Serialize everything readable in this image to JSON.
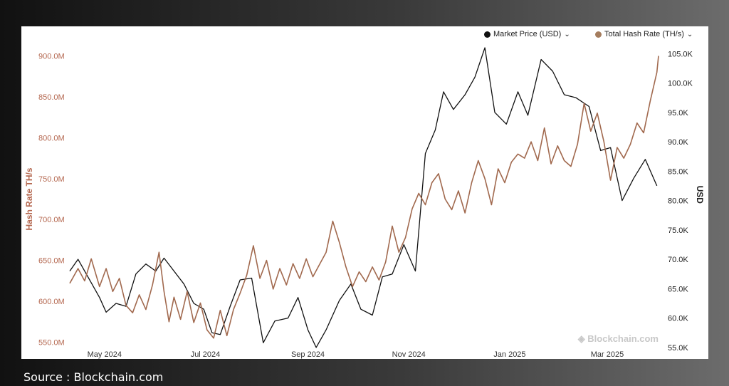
{
  "colors": {
    "price": "#111111",
    "hashrate": "#a1694e",
    "left_axis_text": "#b4674f",
    "watermark": "#c8c8c8"
  },
  "legend": {
    "price_label": "Market Price (USD)",
    "hashrate_label": "Total Hash Rate (TH/s)"
  },
  "watermark": "Blockchain.com",
  "source": "Source : Blockchain.com",
  "chart_data": {
    "type": "line",
    "title": "",
    "x_ticks": [
      "May 2024",
      "Jul 2024",
      "Sep 2024",
      "Nov 2024",
      "Jan 2025",
      "Mar 2025"
    ],
    "x_tick_dates": [
      "2024-05-01",
      "2024-07-01",
      "2024-09-01",
      "2024-11-01",
      "2025-01-01",
      "2025-03-01"
    ],
    "x_range": [
      "2024-04-10",
      "2025-04-01"
    ],
    "y_left": {
      "label": "Hash Rate TH/s",
      "ticks": [
        "550.0M",
        "600.0M",
        "650.0M",
        "700.0M",
        "750.0M",
        "800.0M",
        "850.0M",
        "900.0M"
      ],
      "min": 540000000,
      "max": 910000000
    },
    "y_right": {
      "label": "USD",
      "ticks": [
        "55.0K",
        "60.0K",
        "65.0K",
        "70.0K",
        "75.0K",
        "80.0K",
        "85.0K",
        "90.0K",
        "95.0K",
        "100.0K",
        "105.0K"
      ],
      "min": 54500,
      "max": 106000
    },
    "legend_position": "top-right",
    "grid": false,
    "series": [
      {
        "name": "Market Price (USD)",
        "axis": "right",
        "points": [
          [
            "2024-04-10",
            68000
          ],
          [
            "2024-04-15",
            70000
          ],
          [
            "2024-04-22",
            66500
          ],
          [
            "2024-04-28",
            63500
          ],
          [
            "2024-05-02",
            61000
          ],
          [
            "2024-05-08",
            62500
          ],
          [
            "2024-05-14",
            62000
          ],
          [
            "2024-05-20",
            67500
          ],
          [
            "2024-05-26",
            69200
          ],
          [
            "2024-06-01",
            68000
          ],
          [
            "2024-06-06",
            70200
          ],
          [
            "2024-06-12",
            68000
          ],
          [
            "2024-06-18",
            65800
          ],
          [
            "2024-06-24",
            62500
          ],
          [
            "2024-06-30",
            61500
          ],
          [
            "2024-07-05",
            57500
          ],
          [
            "2024-07-10",
            57200
          ],
          [
            "2024-07-16",
            62000
          ],
          [
            "2024-07-22",
            66500
          ],
          [
            "2024-07-29",
            66800
          ],
          [
            "2024-08-05",
            55800
          ],
          [
            "2024-08-12",
            59500
          ],
          [
            "2024-08-20",
            60000
          ],
          [
            "2024-08-26",
            63500
          ],
          [
            "2024-09-01",
            58000
          ],
          [
            "2024-09-06",
            55000
          ],
          [
            "2024-09-12",
            58000
          ],
          [
            "2024-09-20",
            63000
          ],
          [
            "2024-09-27",
            65800
          ],
          [
            "2024-10-03",
            61500
          ],
          [
            "2024-10-10",
            60500
          ],
          [
            "2024-10-16",
            67000
          ],
          [
            "2024-10-22",
            67500
          ],
          [
            "2024-10-29",
            72500
          ],
          [
            "2024-11-05",
            68000
          ],
          [
            "2024-11-11",
            88000
          ],
          [
            "2024-11-17",
            92000
          ],
          [
            "2024-11-22",
            98500
          ],
          [
            "2024-11-28",
            95500
          ],
          [
            "2024-12-05",
            98000
          ],
          [
            "2024-12-11",
            101000
          ],
          [
            "2024-12-17",
            106000
          ],
          [
            "2024-12-23",
            95000
          ],
          [
            "2024-12-30",
            93000
          ],
          [
            "2025-01-06",
            98500
          ],
          [
            "2025-01-12",
            94500
          ],
          [
            "2025-01-20",
            104000
          ],
          [
            "2025-01-27",
            102000
          ],
          [
            "2025-02-03",
            98000
          ],
          [
            "2025-02-10",
            97500
          ],
          [
            "2025-02-18",
            96000
          ],
          [
            "2025-02-25",
            88500
          ],
          [
            "2025-03-03",
            89000
          ],
          [
            "2025-03-10",
            80000
          ],
          [
            "2025-03-17",
            83800
          ],
          [
            "2025-03-24",
            87000
          ],
          [
            "2025-03-31",
            82500
          ]
        ]
      },
      {
        "name": "Total Hash Rate (TH/s)",
        "axis": "left",
        "points": [
          [
            "2024-04-10",
            622000000
          ],
          [
            "2024-04-15",
            640000000
          ],
          [
            "2024-04-19",
            625000000
          ],
          [
            "2024-04-23",
            652000000
          ],
          [
            "2024-04-28",
            618000000
          ],
          [
            "2024-05-02",
            640000000
          ],
          [
            "2024-05-06",
            612000000
          ],
          [
            "2024-05-10",
            628000000
          ],
          [
            "2024-05-14",
            595000000
          ],
          [
            "2024-05-18",
            586000000
          ],
          [
            "2024-05-22",
            608000000
          ],
          [
            "2024-05-26",
            590000000
          ],
          [
            "2024-05-30",
            620000000
          ],
          [
            "2024-06-03",
            660000000
          ],
          [
            "2024-06-06",
            612000000
          ],
          [
            "2024-06-09",
            575000000
          ],
          [
            "2024-06-12",
            605000000
          ],
          [
            "2024-06-16",
            578000000
          ],
          [
            "2024-06-20",
            612000000
          ],
          [
            "2024-06-24",
            574000000
          ],
          [
            "2024-06-28",
            598000000
          ],
          [
            "2024-07-02",
            565000000
          ],
          [
            "2024-07-06",
            555000000
          ],
          [
            "2024-07-10",
            589000000
          ],
          [
            "2024-07-14",
            558000000
          ],
          [
            "2024-07-18",
            590000000
          ],
          [
            "2024-07-22",
            610000000
          ],
          [
            "2024-07-26",
            632000000
          ],
          [
            "2024-07-30",
            668000000
          ],
          [
            "2024-08-03",
            628000000
          ],
          [
            "2024-08-07",
            650000000
          ],
          [
            "2024-08-11",
            615000000
          ],
          [
            "2024-08-15",
            640000000
          ],
          [
            "2024-08-19",
            620000000
          ],
          [
            "2024-08-23",
            646000000
          ],
          [
            "2024-08-27",
            628000000
          ],
          [
            "2024-08-31",
            652000000
          ],
          [
            "2024-09-04",
            630000000
          ],
          [
            "2024-09-08",
            645000000
          ],
          [
            "2024-09-12",
            660000000
          ],
          [
            "2024-09-16",
            698000000
          ],
          [
            "2024-09-20",
            672000000
          ],
          [
            "2024-09-24",
            642000000
          ],
          [
            "2024-09-28",
            618000000
          ],
          [
            "2024-10-02",
            636000000
          ],
          [
            "2024-10-06",
            624000000
          ],
          [
            "2024-10-10",
            642000000
          ],
          [
            "2024-10-14",
            626000000
          ],
          [
            "2024-10-18",
            648000000
          ],
          [
            "2024-10-22",
            692000000
          ],
          [
            "2024-10-26",
            660000000
          ],
          [
            "2024-10-30",
            678000000
          ],
          [
            "2024-11-03",
            713000000
          ],
          [
            "2024-11-07",
            732000000
          ],
          [
            "2024-11-11",
            718000000
          ],
          [
            "2024-11-15",
            745000000
          ],
          [
            "2024-11-19",
            756000000
          ],
          [
            "2024-11-23",
            725000000
          ],
          [
            "2024-11-27",
            712000000
          ],
          [
            "2024-12-01",
            735000000
          ],
          [
            "2024-12-05",
            708000000
          ],
          [
            "2024-12-09",
            745000000
          ],
          [
            "2024-12-13",
            772000000
          ],
          [
            "2024-12-17",
            750000000
          ],
          [
            "2024-12-21",
            718000000
          ],
          [
            "2024-12-25",
            762000000
          ],
          [
            "2024-12-29",
            745000000
          ],
          [
            "2025-01-02",
            770000000
          ],
          [
            "2025-01-06",
            780000000
          ],
          [
            "2025-01-10",
            775000000
          ],
          [
            "2025-01-14",
            795000000
          ],
          [
            "2025-01-18",
            772000000
          ],
          [
            "2025-01-22",
            812000000
          ],
          [
            "2025-01-26",
            768000000
          ],
          [
            "2025-01-30",
            790000000
          ],
          [
            "2025-02-03",
            772000000
          ],
          [
            "2025-02-07",
            765000000
          ],
          [
            "2025-02-11",
            792000000
          ],
          [
            "2025-02-15",
            842000000
          ],
          [
            "2025-02-19",
            808000000
          ],
          [
            "2025-02-23",
            830000000
          ],
          [
            "2025-02-27",
            795000000
          ],
          [
            "2025-03-03",
            748000000
          ],
          [
            "2025-03-07",
            788000000
          ],
          [
            "2025-03-11",
            775000000
          ],
          [
            "2025-03-15",
            792000000
          ],
          [
            "2025-03-19",
            818000000
          ],
          [
            "2025-03-23",
            806000000
          ],
          [
            "2025-03-27",
            845000000
          ],
          [
            "2025-03-31",
            880000000
          ],
          [
            "2025-04-01",
            900000000
          ]
        ]
      }
    ]
  }
}
